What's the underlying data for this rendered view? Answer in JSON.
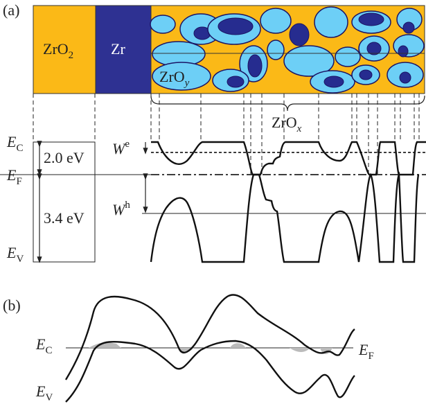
{
  "panel_a": {
    "label": "(a)",
    "zro2": {
      "base": "ZrO",
      "sub": "2"
    },
    "zr": "Zr",
    "zroy": {
      "base": "ZrO",
      "sub": "y"
    },
    "zrox": {
      "base": "ZrO",
      "sub": "x"
    },
    "ec": {
      "base": "E",
      "sub": "C"
    },
    "ef": {
      "base": "E",
      "sub": "F"
    },
    "ev": {
      "base": "E",
      "sub": "V"
    },
    "gap_e": "2.0 eV",
    "gap_h": "3.4 eV",
    "we": {
      "base": "W",
      "sup": "e"
    },
    "wh": {
      "base": "W",
      "sup": "h"
    }
  },
  "panel_b": {
    "label": "(b)",
    "ec": {
      "base": "E",
      "sub": "C"
    },
    "ef": {
      "base": "E",
      "sub": "F"
    },
    "ev": {
      "base": "E",
      "sub": "V"
    }
  }
}
